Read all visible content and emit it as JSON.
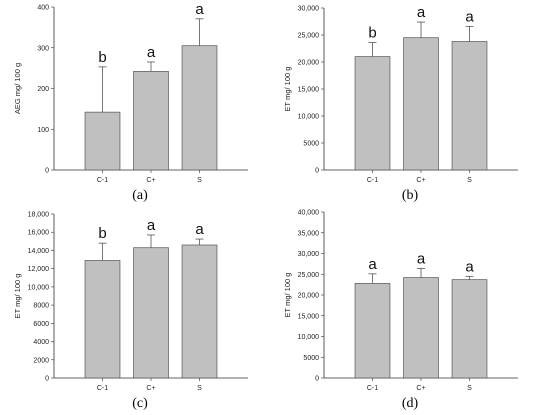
{
  "colors": {
    "bar_fill": "#c0c0c0",
    "bar_stroke": "#555555",
    "axis": "#333333",
    "error_bar": "#555555"
  },
  "chart_data": [
    {
      "type": "bar",
      "caption": "(a)",
      "ylabel": "AEG mg/ 100 g",
      "categories": [
        "C-1",
        "C+",
        "S"
      ],
      "values": [
        142,
        242,
        305
      ],
      "errors": [
        111,
        23,
        66
      ],
      "significance": [
        "b",
        "a",
        "a"
      ],
      "ylim": [
        0,
        400
      ],
      "yticks": [
        0,
        100,
        200,
        300,
        400
      ],
      "ytick_labels": [
        "0",
        "100",
        "200",
        "300",
        "400"
      ],
      "grid": false,
      "legend": "none"
    },
    {
      "type": "bar",
      "caption": "(b)",
      "ylabel": "ET mg/ 100 g",
      "categories": [
        "C-1",
        "C+",
        "S"
      ],
      "values": [
        21000,
        24500,
        23800
      ],
      "errors": [
        2600,
        2900,
        2800
      ],
      "significance": [
        "b",
        "a",
        "a"
      ],
      "ylim": [
        0,
        30000
      ],
      "yticks": [
        0,
        5000,
        10000,
        15000,
        20000,
        25000,
        30000
      ],
      "ytick_labels": [
        "0",
        "5000",
        "10,000",
        "15,000",
        "20,000",
        "25,000",
        "30,000"
      ],
      "grid": false,
      "legend": "none"
    },
    {
      "type": "bar",
      "caption": "(c)",
      "ylabel": "ET mg/ 100 g",
      "categories": [
        "C-1",
        "C+",
        "S"
      ],
      "values": [
        12900,
        14300,
        14600
      ],
      "errors": [
        1900,
        1400,
        650
      ],
      "significance": [
        "b",
        "a",
        "a"
      ],
      "ylim": [
        0,
        18000
      ],
      "yticks": [
        0,
        2000,
        4000,
        6000,
        8000,
        10000,
        12000,
        14000,
        16000,
        18000
      ],
      "ytick_labels": [
        "0",
        "2000",
        "4000",
        "6000",
        "8000",
        "10,000",
        "12,000",
        "14,000",
        "16,000",
        "18,000"
      ],
      "grid": false,
      "legend": "none"
    },
    {
      "type": "bar",
      "caption": "(d)",
      "ylabel": "ET mg/ 100 g",
      "categories": [
        "C-1",
        "C+",
        "S"
      ],
      "values": [
        22800,
        24200,
        23700
      ],
      "errors": [
        2300,
        2200,
        800
      ],
      "significance": [
        "a",
        "a",
        "a"
      ],
      "ylim": [
        0,
        40000
      ],
      "yticks": [
        0,
        5000,
        10000,
        15000,
        20000,
        25000,
        30000,
        35000,
        40000
      ],
      "ytick_labels": [
        "0",
        "5000",
        "10,000",
        "15,000",
        "20,000",
        "25,000",
        "30,000",
        "35,000",
        "40,000"
      ],
      "grid": false,
      "legend": "none"
    }
  ]
}
